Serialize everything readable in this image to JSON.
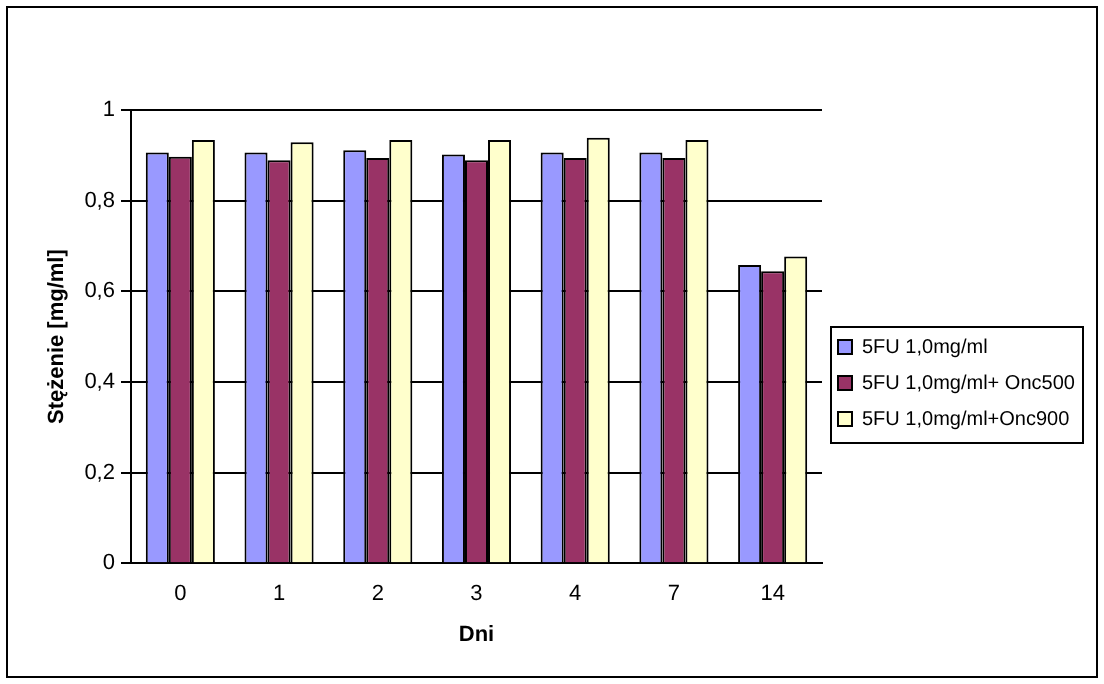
{
  "chart_data": {
    "type": "bar",
    "xlabel": "Dni",
    "ylabel": "Stężenie [mg/ml]",
    "categories": [
      "0",
      "1",
      "2",
      "3",
      "4",
      "7",
      "14"
    ],
    "series": [
      {
        "name": "5FU 1,0mg/ml",
        "color": "#9999ff",
        "values": [
          0.906,
          0.906,
          0.911,
          0.902,
          0.906,
          0.906,
          0.658
        ]
      },
      {
        "name": "5FU 1,0mg/ml+ Onc500",
        "color": "#993366",
        "values": [
          0.897,
          0.889,
          0.894,
          0.889,
          0.894,
          0.894,
          0.644
        ]
      },
      {
        "name": "5FU 1,0mg/ml+Onc900",
        "color": "#ffffcc",
        "values": [
          0.934,
          0.929,
          0.934,
          0.934,
          0.939,
          0.934,
          0.677
        ]
      }
    ],
    "ylim": [
      0,
      1
    ],
    "yticks": [
      {
        "value": 0,
        "label": "0"
      },
      {
        "value": 0.2,
        "label": "0,2"
      },
      {
        "value": 0.4,
        "label": "0,4"
      },
      {
        "value": 0.6,
        "label": "0,6"
      },
      {
        "value": 0.8,
        "label": "0,8"
      },
      {
        "value": 1,
        "label": "1"
      }
    ],
    "grid": "y",
    "legend": "right"
  }
}
